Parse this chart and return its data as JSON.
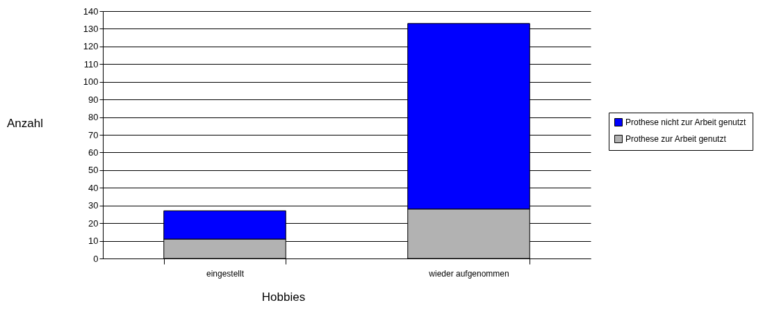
{
  "chart_data": {
    "type": "bar",
    "stacked": true,
    "xlabel": "Hobbies",
    "ylabel": "Anzahl",
    "categories": [
      "eingestellt",
      "wieder aufgenommen"
    ],
    "series": [
      {
        "name": "Prothese zur Arbeit genutzt",
        "color": "#b2b2b2",
        "values": [
          11,
          28
        ]
      },
      {
        "name": "Prothese nicht zur Arbeit genutzt",
        "color": "#0000ff",
        "values": [
          16,
          105
        ]
      }
    ],
    "ylim": [
      0,
      140
    ],
    "yticks": [
      0,
      10,
      20,
      30,
      40,
      50,
      60,
      70,
      80,
      90,
      100,
      110,
      120,
      130,
      140
    ],
    "grid": "y",
    "legend": "right"
  }
}
